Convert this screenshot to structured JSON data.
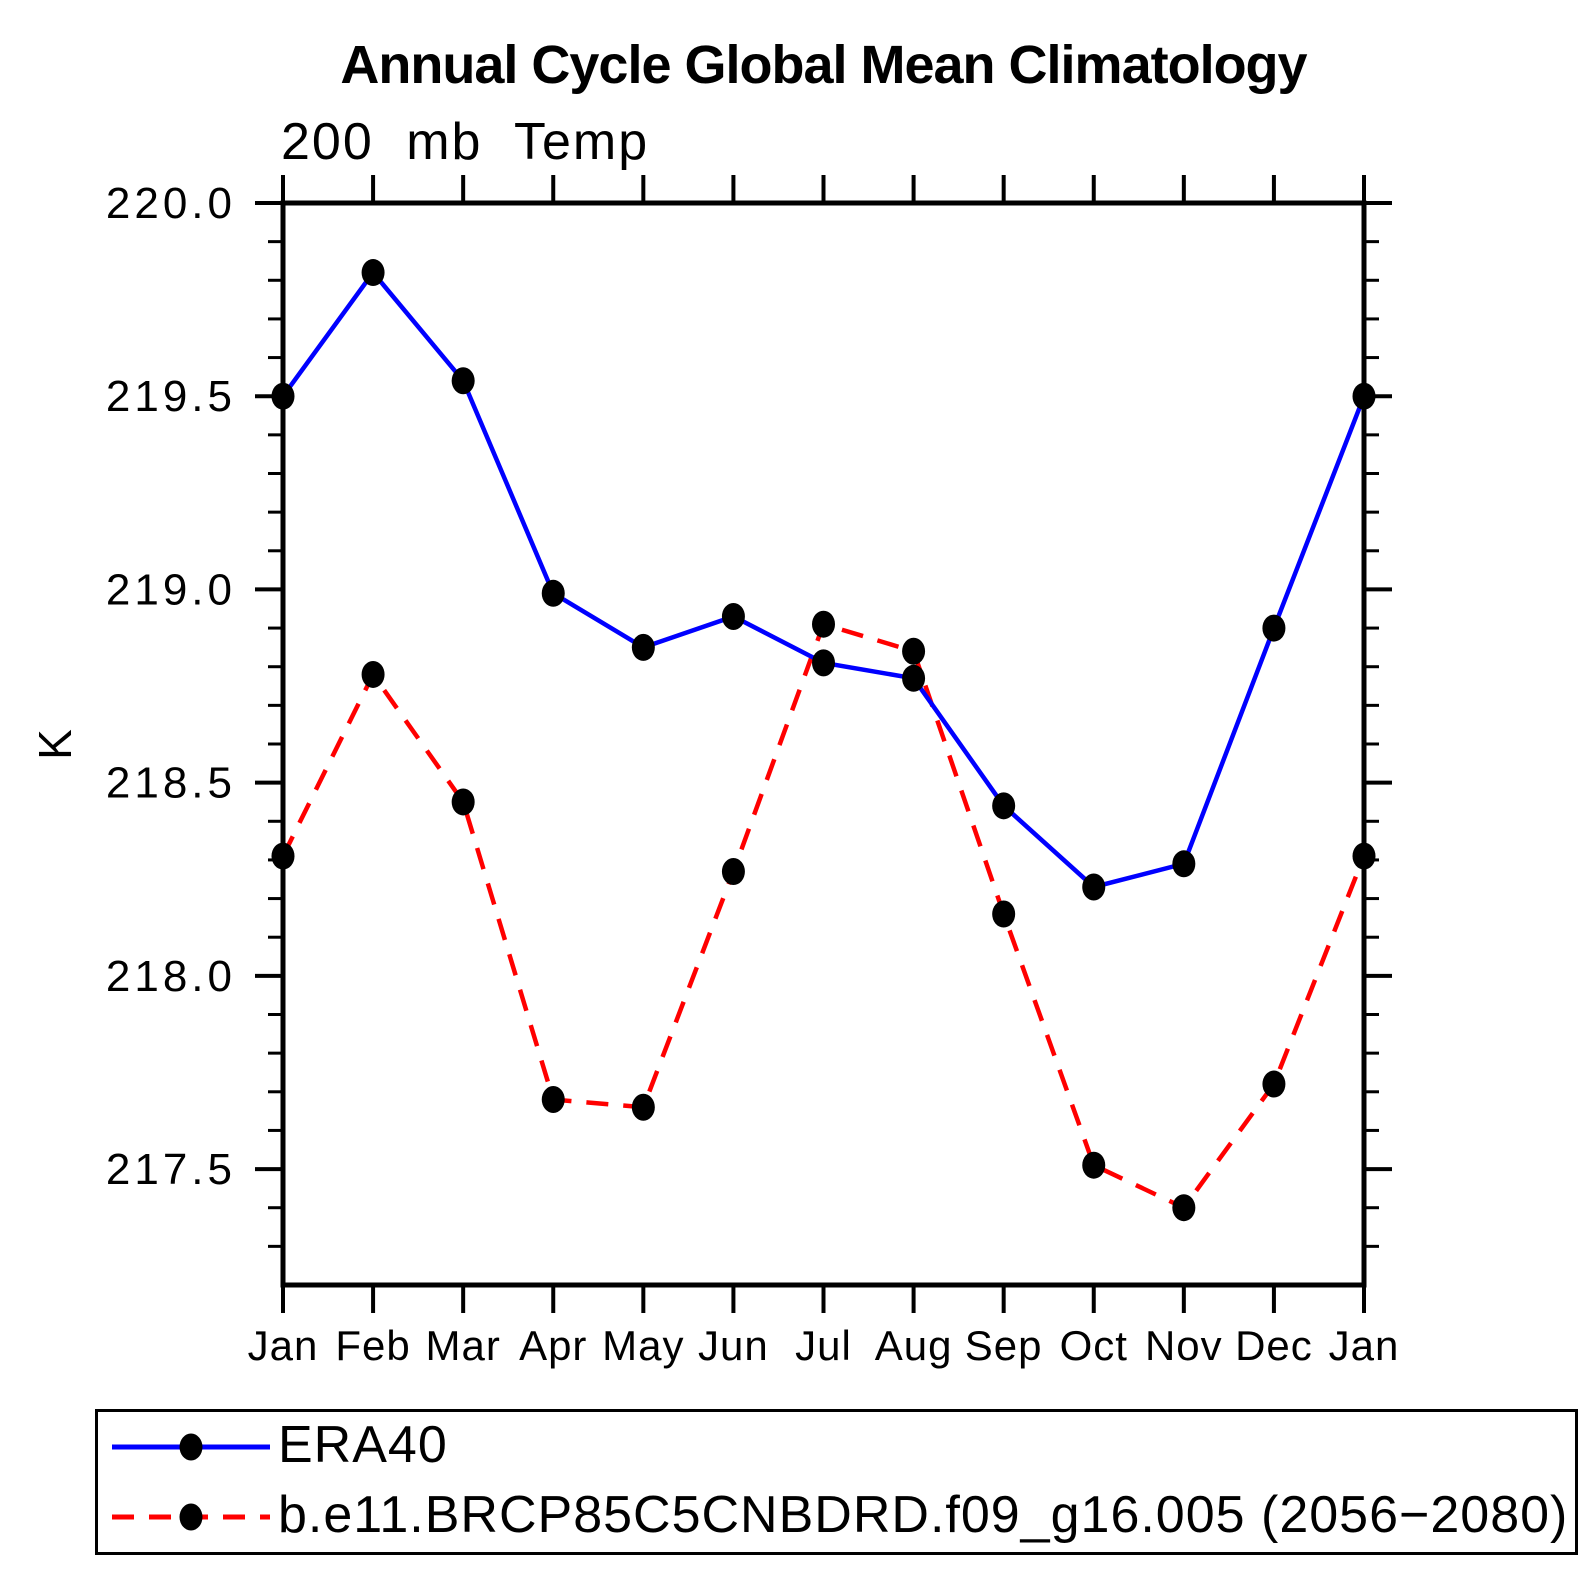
{
  "chart_data": {
    "type": "line",
    "title": "Annual Cycle Global Mean Climatology",
    "subtitle": "200 mb Temp",
    "ylabel": "K",
    "categories": [
      "Jan",
      "Feb",
      "Mar",
      "Apr",
      "May",
      "Jun",
      "Jul",
      "Aug",
      "Sep",
      "Oct",
      "Nov",
      "Dec",
      "Jan"
    ],
    "series": [
      {
        "name": "ERA40",
        "color": "#0000ff",
        "line_style": "solid",
        "marker": "filled-circle",
        "marker_color": "#000000",
        "values": [
          219.5,
          219.82,
          219.54,
          218.99,
          218.85,
          218.93,
          218.81,
          218.77,
          218.44,
          218.23,
          218.29,
          218.9,
          219.5
        ]
      },
      {
        "name": "b.e11.BRCP85C5CNBDRD.f09_g16.005 (2056−2080)",
        "color": "#ff0000",
        "line_style": "dashed",
        "marker": "filled-circle",
        "marker_color": "#000000",
        "values": [
          218.31,
          218.78,
          218.45,
          217.68,
          217.66,
          218.27,
          218.91,
          218.84,
          218.16,
          217.51,
          217.4,
          217.72,
          218.31
        ]
      }
    ],
    "ylim": [
      217.2,
      220.0
    ],
    "yticks_major": [
      217.5,
      218.0,
      218.5,
      219.0,
      219.5,
      220.0
    ],
    "ytick_labels": [
      "217.5",
      "218.0",
      "218.5",
      "219.0",
      "219.5",
      "220.0"
    ],
    "ytick_minor_step": 0.1,
    "grid": false,
    "legend_position": "bottom",
    "axis_color": "#000000"
  }
}
